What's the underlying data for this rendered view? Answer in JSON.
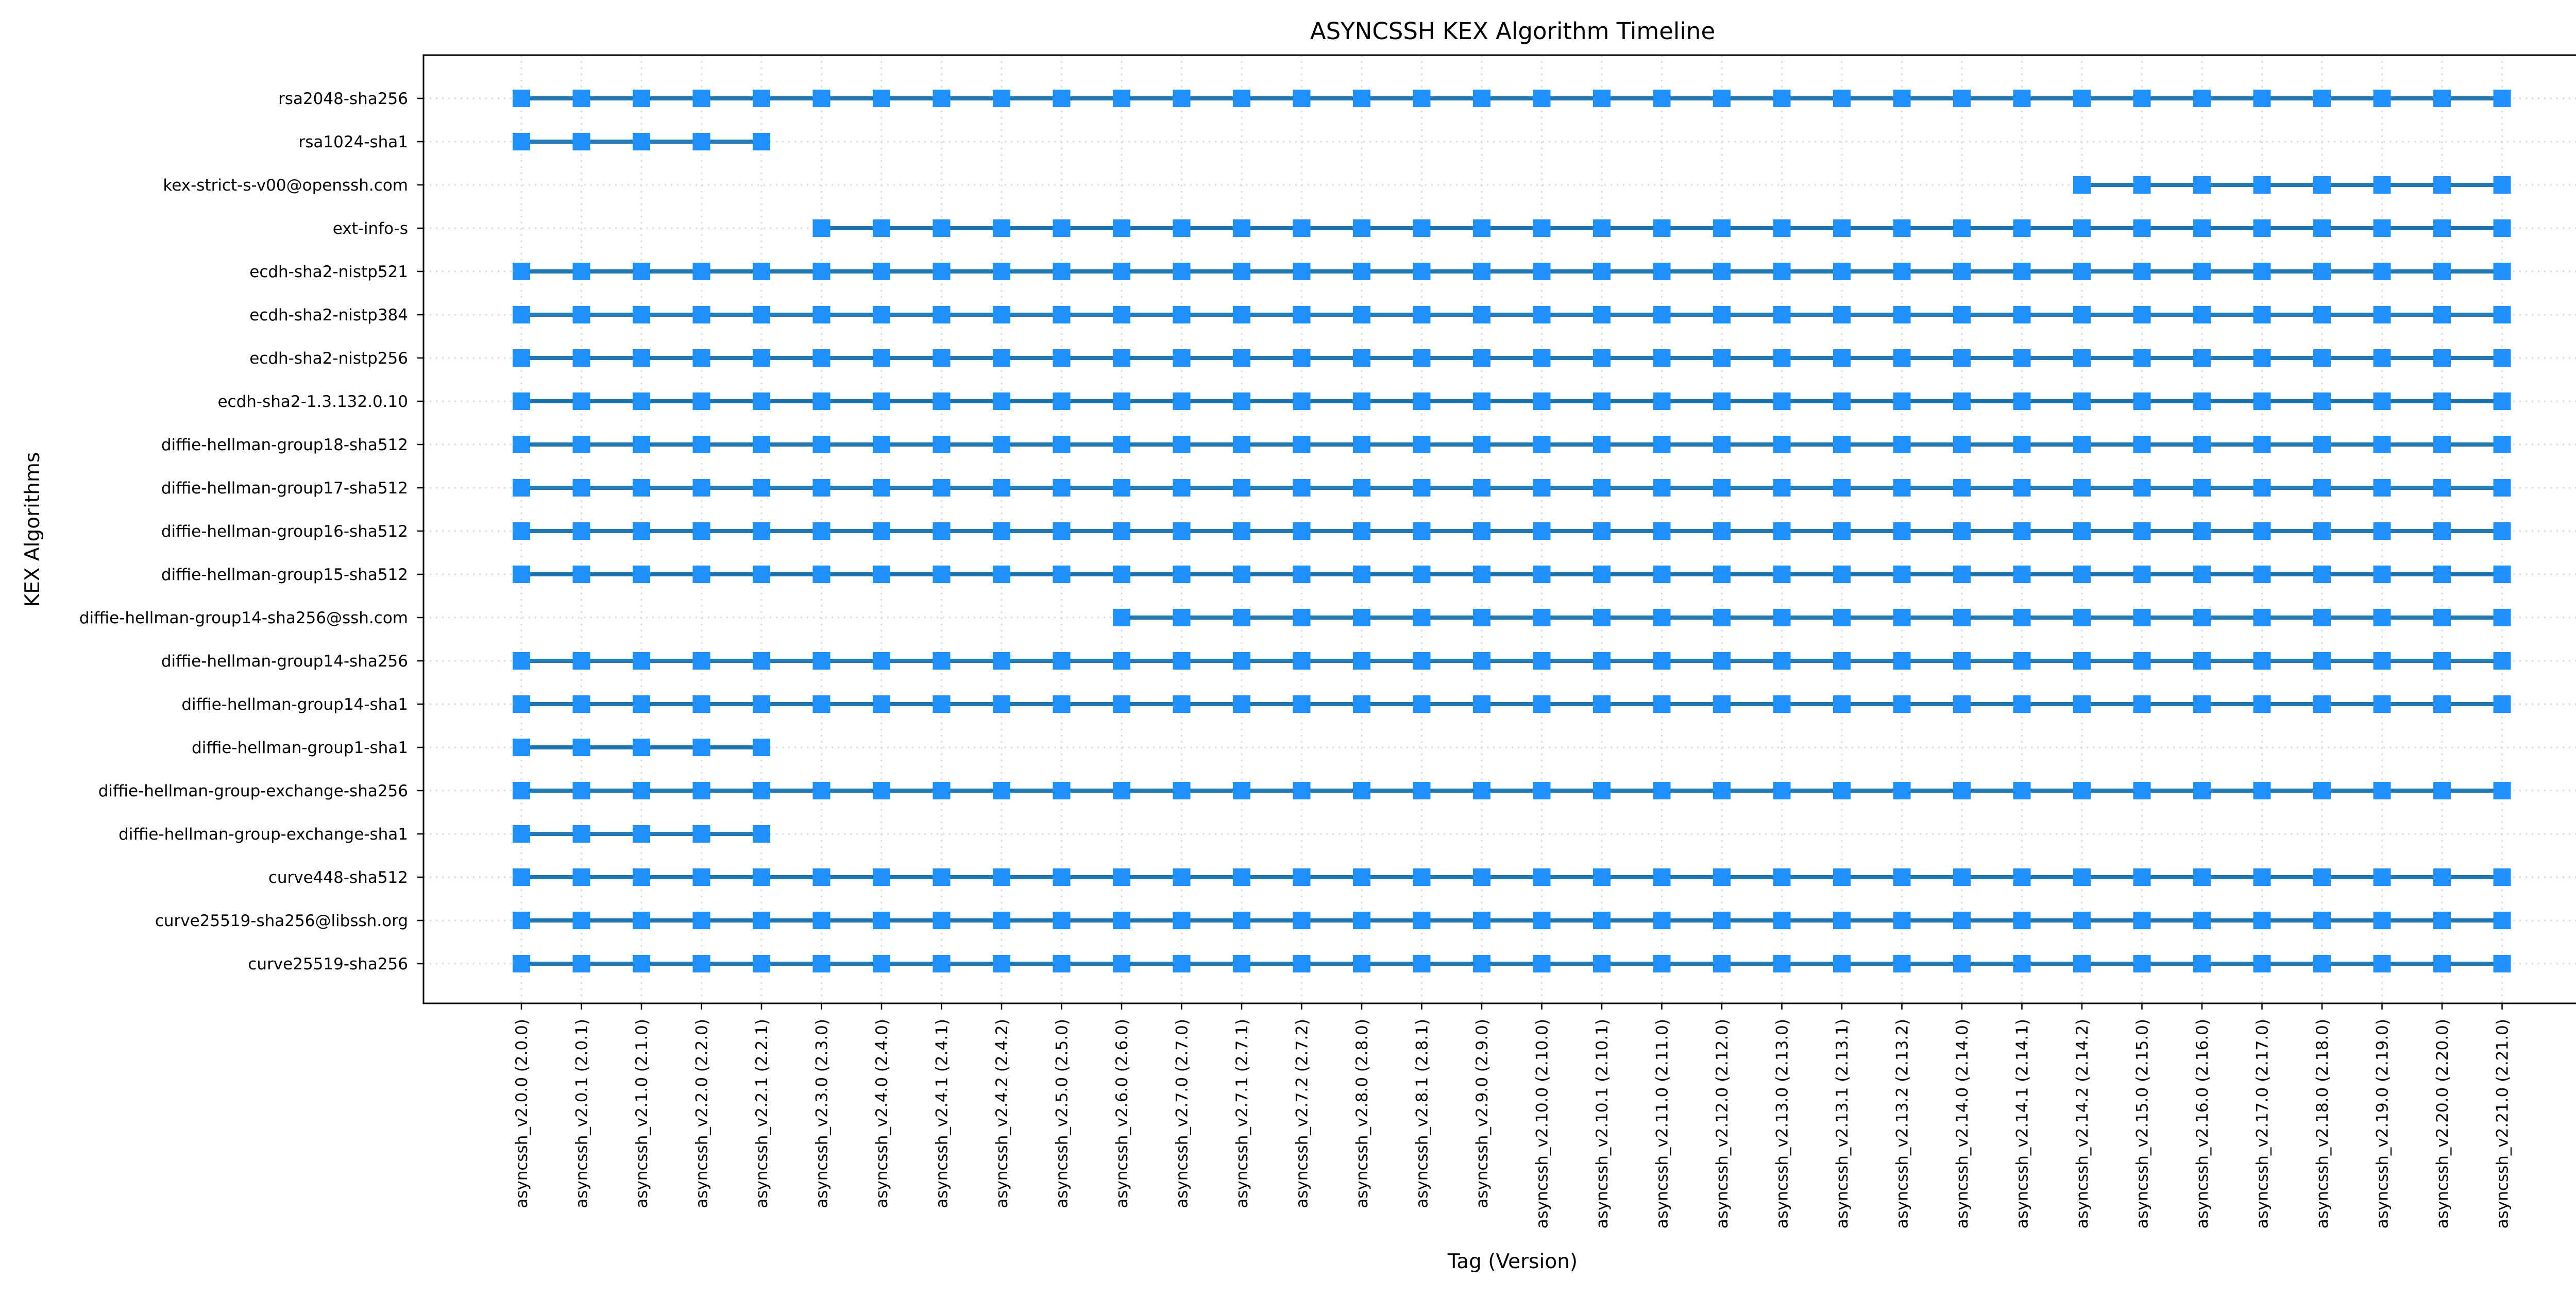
{
  "chart_data": {
    "type": "scatter",
    "title": "ASYNCSSH KEX Algorithm Timeline",
    "xlabel": "Tag (Version)",
    "ylabel": "KEX Algorithms",
    "grid": true,
    "marker_color": "#1e90ff",
    "line_color": "#1f77b4",
    "x_categories": [
      "asyncssh_v2.0.0 (2.0.0)",
      "asyncssh_v2.0.1 (2.0.1)",
      "asyncssh_v2.1.0 (2.1.0)",
      "asyncssh_v2.2.0 (2.2.0)",
      "asyncssh_v2.2.1 (2.2.1)",
      "asyncssh_v2.3.0 (2.3.0)",
      "asyncssh_v2.4.0 (2.4.0)",
      "asyncssh_v2.4.1 (2.4.1)",
      "asyncssh_v2.4.2 (2.4.2)",
      "asyncssh_v2.5.0 (2.5.0)",
      "asyncssh_v2.6.0 (2.6.0)",
      "asyncssh_v2.7.0 (2.7.0)",
      "asyncssh_v2.7.1 (2.7.1)",
      "asyncssh_v2.7.2 (2.7.2)",
      "asyncssh_v2.8.0 (2.8.0)",
      "asyncssh_v2.8.1 (2.8.1)",
      "asyncssh_v2.9.0 (2.9.0)",
      "asyncssh_v2.10.0 (2.10.0)",
      "asyncssh_v2.10.1 (2.10.1)",
      "asyncssh_v2.11.0 (2.11.0)",
      "asyncssh_v2.12.0 (2.12.0)",
      "asyncssh_v2.13.0 (2.13.0)",
      "asyncssh_v2.13.1 (2.13.1)",
      "asyncssh_v2.13.2 (2.13.2)",
      "asyncssh_v2.14.0 (2.14.0)",
      "asyncssh_v2.14.1 (2.14.1)",
      "asyncssh_v2.14.2 (2.14.2)",
      "asyncssh_v2.15.0 (2.15.0)",
      "asyncssh_v2.16.0 (2.16.0)",
      "asyncssh_v2.17.0 (2.17.0)",
      "asyncssh_v2.18.0 (2.18.0)",
      "asyncssh_v2.19.0 (2.19.0)",
      "asyncssh_v2.20.0 (2.20.0)",
      "asyncssh_v2.21.0 (2.21.0)"
    ],
    "series": [
      {
        "name": "rsa2048-sha256",
        "start": "asyncssh_v2.0.0 (2.0.0)",
        "end": "asyncssh_v2.21.0 (2.21.0)"
      },
      {
        "name": "rsa1024-sha1",
        "start": "asyncssh_v2.0.0 (2.0.0)",
        "end": "asyncssh_v2.2.1 (2.2.1)"
      },
      {
        "name": "kex-strict-s-v00@openssh.com",
        "start": "asyncssh_v2.14.2 (2.14.2)",
        "end": "asyncssh_v2.21.0 (2.21.0)"
      },
      {
        "name": "ext-info-s",
        "start": "asyncssh_v2.3.0 (2.3.0)",
        "end": "asyncssh_v2.21.0 (2.21.0)"
      },
      {
        "name": "ecdh-sha2-nistp521",
        "start": "asyncssh_v2.0.0 (2.0.0)",
        "end": "asyncssh_v2.21.0 (2.21.0)"
      },
      {
        "name": "ecdh-sha2-nistp384",
        "start": "asyncssh_v2.0.0 (2.0.0)",
        "end": "asyncssh_v2.21.0 (2.21.0)"
      },
      {
        "name": "ecdh-sha2-nistp256",
        "start": "asyncssh_v2.0.0 (2.0.0)",
        "end": "asyncssh_v2.21.0 (2.21.0)"
      },
      {
        "name": "ecdh-sha2-1.3.132.0.10",
        "start": "asyncssh_v2.0.0 (2.0.0)",
        "end": "asyncssh_v2.21.0 (2.21.0)"
      },
      {
        "name": "diffie-hellman-group18-sha512",
        "start": "asyncssh_v2.0.0 (2.0.0)",
        "end": "asyncssh_v2.21.0 (2.21.0)"
      },
      {
        "name": "diffie-hellman-group17-sha512",
        "start": "asyncssh_v2.0.0 (2.0.0)",
        "end": "asyncssh_v2.21.0 (2.21.0)"
      },
      {
        "name": "diffie-hellman-group16-sha512",
        "start": "asyncssh_v2.0.0 (2.0.0)",
        "end": "asyncssh_v2.21.0 (2.21.0)"
      },
      {
        "name": "diffie-hellman-group15-sha512",
        "start": "asyncssh_v2.0.0 (2.0.0)",
        "end": "asyncssh_v2.21.0 (2.21.0)"
      },
      {
        "name": "diffie-hellman-group14-sha256@ssh.com",
        "start": "asyncssh_v2.6.0 (2.6.0)",
        "end": "asyncssh_v2.21.0 (2.21.0)"
      },
      {
        "name": "diffie-hellman-group14-sha256",
        "start": "asyncssh_v2.0.0 (2.0.0)",
        "end": "asyncssh_v2.21.0 (2.21.0)"
      },
      {
        "name": "diffie-hellman-group14-sha1",
        "start": "asyncssh_v2.0.0 (2.0.0)",
        "end": "asyncssh_v2.21.0 (2.21.0)"
      },
      {
        "name": "diffie-hellman-group1-sha1",
        "start": "asyncssh_v2.0.0 (2.0.0)",
        "end": "asyncssh_v2.2.1 (2.2.1)"
      },
      {
        "name": "diffie-hellman-group-exchange-sha256",
        "start": "asyncssh_v2.0.0 (2.0.0)",
        "end": "asyncssh_v2.21.0 (2.21.0)"
      },
      {
        "name": "diffie-hellman-group-exchange-sha1",
        "start": "asyncssh_v2.0.0 (2.0.0)",
        "end": "asyncssh_v2.2.1 (2.2.1)"
      },
      {
        "name": "curve448-sha512",
        "start": "asyncssh_v2.0.0 (2.0.0)",
        "end": "asyncssh_v2.21.0 (2.21.0)"
      },
      {
        "name": "curve25519-sha256@libssh.org",
        "start": "asyncssh_v2.0.0 (2.0.0)",
        "end": "asyncssh_v2.21.0 (2.21.0)"
      },
      {
        "name": "curve25519-sha256",
        "start": "asyncssh_v2.0.0 (2.0.0)",
        "end": "asyncssh_v2.21.0 (2.21.0)"
      }
    ]
  }
}
